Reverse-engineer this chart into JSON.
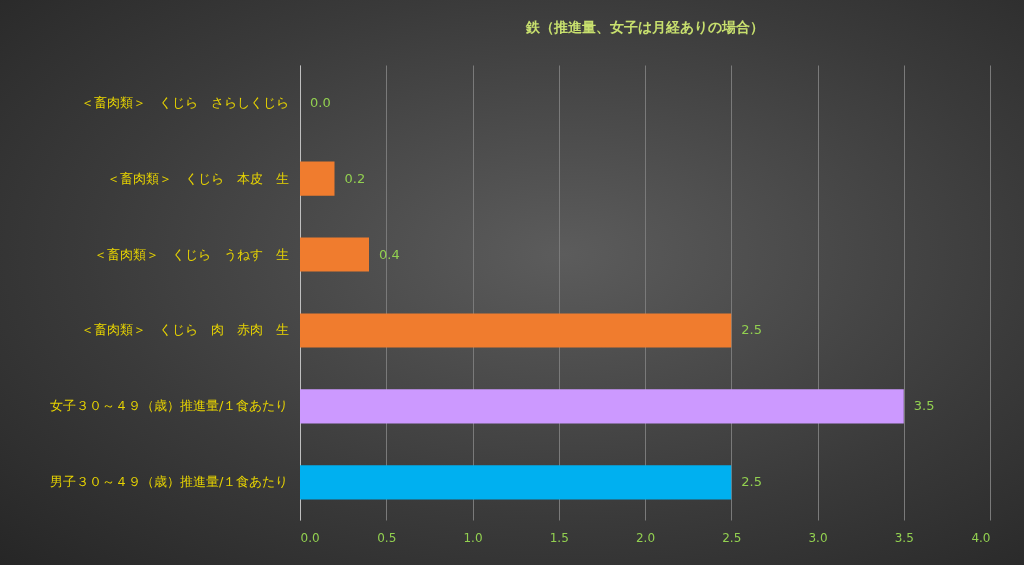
{
  "chart_data": {
    "type": "bar",
    "orientation": "horizontal",
    "title": "鉄（推進量、女子は月経ありの場合）",
    "categories": [
      "＜畜肉類＞　くじら　さらしくじら",
      "＜畜肉類＞　くじら　本皮　生",
      "＜畜肉類＞　くじら　うねす　生",
      "＜畜肉類＞　くじら　肉　赤肉　生",
      "女子３０～４９（歳）推進量/１食あたり",
      "男子３０～４９（歳）推進量/１食あたり"
    ],
    "values": [
      0.0,
      0.2,
      0.4,
      2.5,
      3.5,
      2.5
    ],
    "colors": [
      "#f07c2e",
      "#f07c2e",
      "#f07c2e",
      "#f07c2e",
      "#cc99ff",
      "#00b0f0"
    ],
    "value_labels": [
      "0.0",
      "0.2",
      "0.4",
      "2.5",
      "3.5",
      "2.5"
    ],
    "xlim": [
      0,
      4
    ],
    "xticks": [
      {
        "value": 0,
        "label": "0.0"
      },
      0.5,
      {
        "value": 1,
        "label": "1.0"
      },
      1.5,
      {
        "value": 2,
        "label": "2.0"
      },
      2.5,
      {
        "value": 3,
        "label": "3.0"
      },
      3.5,
      {
        "value": 4,
        "label": "4.0"
      }
    ],
    "grid": "x"
  }
}
